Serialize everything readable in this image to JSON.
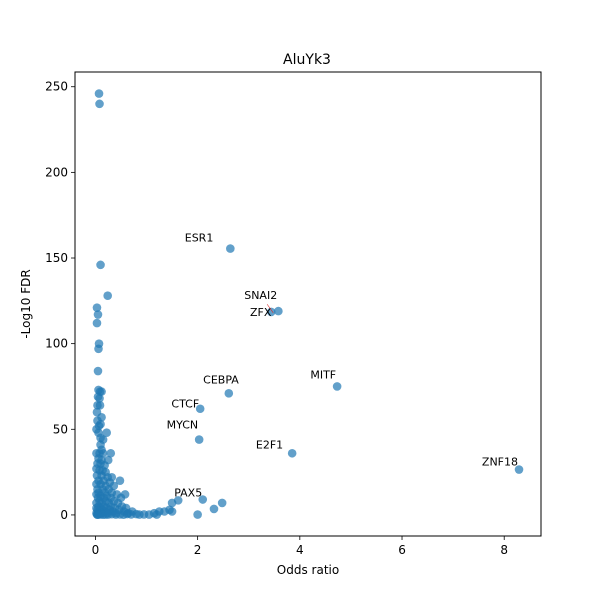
{
  "chart_data": {
    "type": "scatter",
    "title": "AluYk3",
    "xlabel": "Odds ratio",
    "ylabel": "-Log10 FDR",
    "xlim": [
      -0.4,
      8.72
    ],
    "ylim": [
      -12.3,
      258.6
    ],
    "xticks": [
      0,
      2,
      4,
      6,
      8
    ],
    "yticks": [
      0,
      50,
      100,
      150,
      200,
      250
    ],
    "grid": false,
    "marker_color": "#1f77b4",
    "marker_alpha": 0.7,
    "annotations": [
      {
        "label": "ESR1",
        "x": 2.64,
        "y": 155.5
      },
      {
        "label": "SNAI2",
        "x": 3.44,
        "y": 118.5
      },
      {
        "label": "ZFX",
        "x": 3.58,
        "y": 119.0
      },
      {
        "label": "MITF",
        "x": 4.73,
        "y": 75.0
      },
      {
        "label": "CEBPA",
        "x": 2.61,
        "y": 71.0
      },
      {
        "label": "CTCF",
        "x": 2.05,
        "y": 62.0
      },
      {
        "label": "MYCN",
        "x": 2.03,
        "y": 44.0
      },
      {
        "label": "E2F1",
        "x": 3.85,
        "y": 36.0
      },
      {
        "label": "ZNF18",
        "x": 8.29,
        "y": 26.5
      },
      {
        "label": "PAX5",
        "x": 1.62,
        "y": 8.5
      }
    ],
    "points": [
      [
        0.07,
        246
      ],
      [
        0.08,
        240
      ],
      [
        0.1,
        146
      ],
      [
        0.24,
        128
      ],
      [
        0.03,
        121
      ],
      [
        0.05,
        117
      ],
      [
        0.03,
        112
      ],
      [
        0.07,
        100
      ],
      [
        0.06,
        97
      ],
      [
        0.05,
        84
      ],
      [
        0.06,
        73
      ],
      [
        0.09,
        72
      ],
      [
        0.12,
        72
      ],
      [
        0.05,
        69
      ],
      [
        0.08,
        68
      ],
      [
        0.04,
        64
      ],
      [
        0.09,
        64
      ],
      [
        0.03,
        60
      ],
      [
        0.12,
        57
      ],
      [
        0.04,
        55
      ],
      [
        0.1,
        53
      ],
      [
        0.07,
        52
      ],
      [
        0.02,
        50
      ],
      [
        0.06,
        48
      ],
      [
        0.22,
        48
      ],
      [
        0.1,
        45
      ],
      [
        0.15,
        44
      ],
      [
        0.1,
        41
      ],
      [
        0.12,
        38
      ],
      [
        0.02,
        36
      ],
      [
        0.08,
        36
      ],
      [
        0.15,
        36
      ],
      [
        0.3,
        36
      ],
      [
        0.06,
        33
      ],
      [
        0.12,
        32
      ],
      [
        0.25,
        32
      ],
      [
        0.04,
        30
      ],
      [
        0.1,
        30
      ],
      [
        0.18,
        29
      ],
      [
        0.02,
        27
      ],
      [
        0.08,
        26
      ],
      [
        0.14,
        26
      ],
      [
        0.2,
        25
      ],
      [
        0.03,
        23
      ],
      [
        0.12,
        23
      ],
      [
        0.24,
        22
      ],
      [
        0.32,
        22
      ],
      [
        0.06,
        20
      ],
      [
        0.16,
        20
      ],
      [
        0.28,
        19
      ],
      [
        0.48,
        20
      ],
      [
        0.02,
        18
      ],
      [
        0.1,
        18
      ],
      [
        0.2,
        17
      ],
      [
        0.36,
        17
      ],
      [
        0.04,
        15
      ],
      [
        0.14,
        15
      ],
      [
        0.26,
        15
      ],
      [
        0.06,
        13
      ],
      [
        0.18,
        13
      ],
      [
        0.32,
        13
      ],
      [
        0.02,
        12
      ],
      [
        0.1,
        11
      ],
      [
        0.22,
        11
      ],
      [
        0.42,
        12
      ],
      [
        0.58,
        12
      ],
      [
        0.05,
        10
      ],
      [
        0.16,
        10
      ],
      [
        0.3,
        10
      ],
      [
        0.5,
        10
      ],
      [
        0.08,
        8
      ],
      [
        0.2,
        8
      ],
      [
        0.36,
        8
      ],
      [
        0.02,
        7
      ],
      [
        0.12,
        7
      ],
      [
        0.26,
        7
      ],
      [
        0.44,
        7
      ],
      [
        0.06,
        5
      ],
      [
        0.16,
        5
      ],
      [
        0.3,
        5
      ],
      [
        0.52,
        5
      ],
      [
        0.02,
        4
      ],
      [
        0.1,
        4
      ],
      [
        0.22,
        4
      ],
      [
        0.38,
        4
      ],
      [
        0.6,
        4
      ],
      [
        0.04,
        3
      ],
      [
        0.14,
        3
      ],
      [
        0.28,
        3
      ],
      [
        0.46,
        3
      ],
      [
        0.08,
        2
      ],
      [
        0.18,
        2
      ],
      [
        0.34,
        2
      ],
      [
        0.56,
        2
      ],
      [
        0.72,
        2
      ],
      [
        0.02,
        1
      ],
      [
        0.12,
        1
      ],
      [
        0.24,
        1
      ],
      [
        0.4,
        1
      ],
      [
        0.64,
        1
      ],
      [
        0.03,
        0.3
      ],
      [
        0.1,
        0.3
      ],
      [
        0.2,
        0.2
      ],
      [
        0.32,
        0.4
      ],
      [
        0.48,
        0.3
      ],
      [
        0.62,
        0.5
      ],
      [
        0.8,
        0.5
      ],
      [
        0.86,
        0.2
      ],
      [
        0.95,
        0.3
      ],
      [
        1.05,
        0.2
      ],
      [
        1.15,
        1
      ],
      [
        1.2,
        0.2
      ],
      [
        1.25,
        2
      ],
      [
        1.35,
        2
      ],
      [
        1.45,
        3
      ],
      [
        1.5,
        2
      ],
      [
        1.5,
        7
      ],
      [
        1.62,
        8.5
      ],
      [
        2.1,
        9
      ],
      [
        2.0,
        0.2
      ],
      [
        2.32,
        3.5
      ],
      [
        2.48,
        7
      ],
      [
        0.04,
        0.1
      ],
      [
        0.06,
        0.2
      ],
      [
        0.15,
        0.1
      ],
      [
        0.25,
        0.2
      ],
      [
        0.4,
        0.2
      ],
      [
        0.55,
        0.1
      ],
      [
        0.7,
        0.3
      ],
      [
        2.64,
        155.5
      ],
      [
        3.44,
        118.5
      ],
      [
        3.58,
        119.0
      ],
      [
        4.73,
        75.0
      ],
      [
        2.61,
        71.0
      ],
      [
        2.05,
        62.0
      ],
      [
        2.03,
        44.0
      ],
      [
        3.85,
        36.0
      ],
      [
        8.29,
        26.5
      ]
    ]
  }
}
